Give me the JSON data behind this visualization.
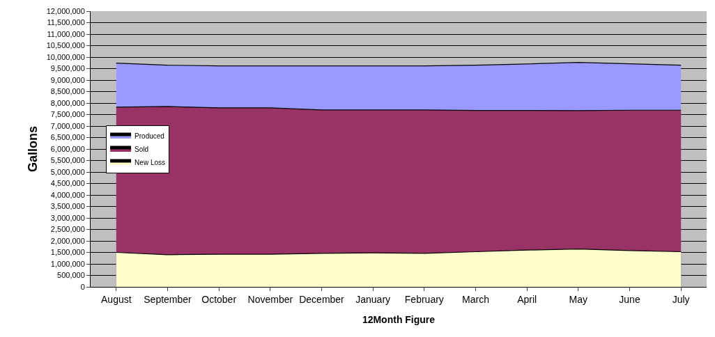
{
  "chart_data": {
    "type": "area",
    "xlabel": "12Month Figure",
    "ylabel": "Gallons",
    "categories": [
      "August",
      "September",
      "October",
      "November",
      "December",
      "January",
      "February",
      "March",
      "April",
      "May",
      "June",
      "July"
    ],
    "series": [
      {
        "name": "Produced",
        "color": "#9999ff",
        "values": [
          9740000,
          9650000,
          9620000,
          9620000,
          9620000,
          9620000,
          9620000,
          9650000,
          9700000,
          9770000,
          9710000,
          9650000
        ]
      },
      {
        "name": "Sold",
        "color": "#993366",
        "values": [
          7820000,
          7850000,
          7790000,
          7790000,
          7700000,
          7700000,
          7700000,
          7680000,
          7680000,
          7670000,
          7690000,
          7690000
        ]
      },
      {
        "name": "New Loss",
        "color": "#ffffcc",
        "values": [
          1500000,
          1400000,
          1420000,
          1420000,
          1460000,
          1480000,
          1460000,
          1530000,
          1600000,
          1650000,
          1580000,
          1530000
        ]
      }
    ],
    "ylim": [
      0,
      12000000
    ],
    "yticks": [
      {
        "value": 0,
        "label": "0"
      },
      {
        "value": 500000,
        "label": "500,000"
      },
      {
        "value": 1000000,
        "label": "1,000,000"
      },
      {
        "value": 1500000,
        "label": "1,500,000"
      },
      {
        "value": 2000000,
        "label": "2,000,000"
      },
      {
        "value": 2500000,
        "label": "2,500,000"
      },
      {
        "value": 3000000,
        "label": "3,000,000"
      },
      {
        "value": 3500000,
        "label": "3,500,000"
      },
      {
        "value": 4000000,
        "label": "4,000,000"
      },
      {
        "value": 4500000,
        "label": "4,500,000"
      },
      {
        "value": 5000000,
        "label": "5,000,000"
      },
      {
        "value": 5500000,
        "label": "5,500,000"
      },
      {
        "value": 6000000,
        "label": "6,000,000"
      },
      {
        "value": 6500000,
        "label": "6,500,000"
      },
      {
        "value": 7000000,
        "label": "7,000,000"
      },
      {
        "value": 7500000,
        "label": "7,500,000"
      },
      {
        "value": 8000000,
        "label": "8,000,000"
      },
      {
        "value": 8500000,
        "label": "8,500,000"
      },
      {
        "value": 9000000,
        "label": "9,000,000"
      },
      {
        "value": 9500000,
        "label": "9,500,000"
      },
      {
        "value": 10000000,
        "label": "10,000,000"
      },
      {
        "value": 10500000,
        "label": "10,500,000"
      },
      {
        "value": 11000000,
        "label": "11,000,000"
      },
      {
        "value": 11500000,
        "label": "11,500,000"
      },
      {
        "value": 12000000,
        "label": "12,000,000"
      }
    ],
    "grid": "y",
    "legend": "left"
  }
}
